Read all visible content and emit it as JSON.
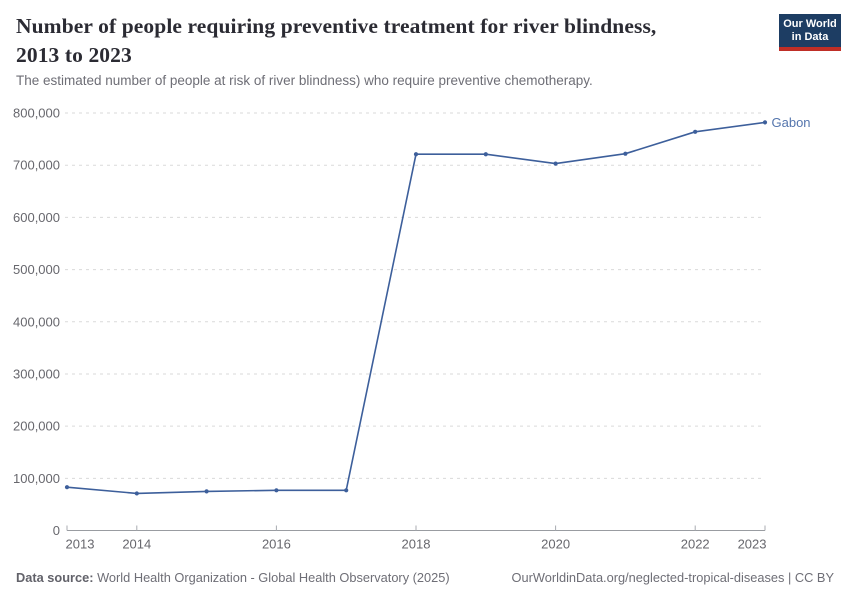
{
  "header": {
    "title_line1": "Number of people requiring preventive treatment for river blindness,",
    "title_line2": "2013 to 2023",
    "subtitle": "The estimated number of people at risk of river blindness) who require preventive chemotherapy."
  },
  "logo": {
    "line1": "Our World",
    "line2": "in Data",
    "bg_color": "#1d3d63",
    "accent_color": "#bf2e26"
  },
  "chart_data": {
    "type": "line",
    "title": "Number of people requiring preventive treatment for river blindness, 2013 to 2023",
    "subtitle": "The estimated number of people at risk of river blindness) who require preventive chemotherapy.",
    "xlabel": "",
    "ylabel": "",
    "xlim": [
      2013,
      2023
    ],
    "ylim": [
      0,
      800000
    ],
    "grid": "horizontal-dashed",
    "legend_position": "end-of-line-label",
    "x": [
      2013,
      2014,
      2015,
      2016,
      2017,
      2018,
      2019,
      2020,
      2021,
      2022,
      2023
    ],
    "series": [
      {
        "name": "Gabon",
        "color": "#3d5f9b",
        "label_color": "#5475ad",
        "values": [
          83000,
          71000,
          75000,
          77000,
          77000,
          721000,
          721000,
          703000,
          722000,
          764000,
          782000
        ]
      }
    ],
    "x_tick_values": [
      2013,
      2014,
      2016,
      2018,
      2020,
      2022,
      2023
    ],
    "x_tick_labels": [
      "2013",
      "2014",
      "2016",
      "2018",
      "2020",
      "2022",
      "2023"
    ],
    "y_tick_values": [
      0,
      100000,
      200000,
      300000,
      400000,
      500000,
      600000,
      700000,
      800000
    ],
    "y_tick_labels": [
      "0",
      "100,000",
      "200,000",
      "300,000",
      "400,000",
      "500,000",
      "600,000",
      "700,000",
      "800,000"
    ],
    "end_label": "Gabon"
  },
  "footer": {
    "datasource_label": "Data source:",
    "datasource_text": " World Health Organization - Global Health Observatory (2025)",
    "link_text": "OurWorldinData.org/neglected-tropical-diseases | CC BY"
  }
}
